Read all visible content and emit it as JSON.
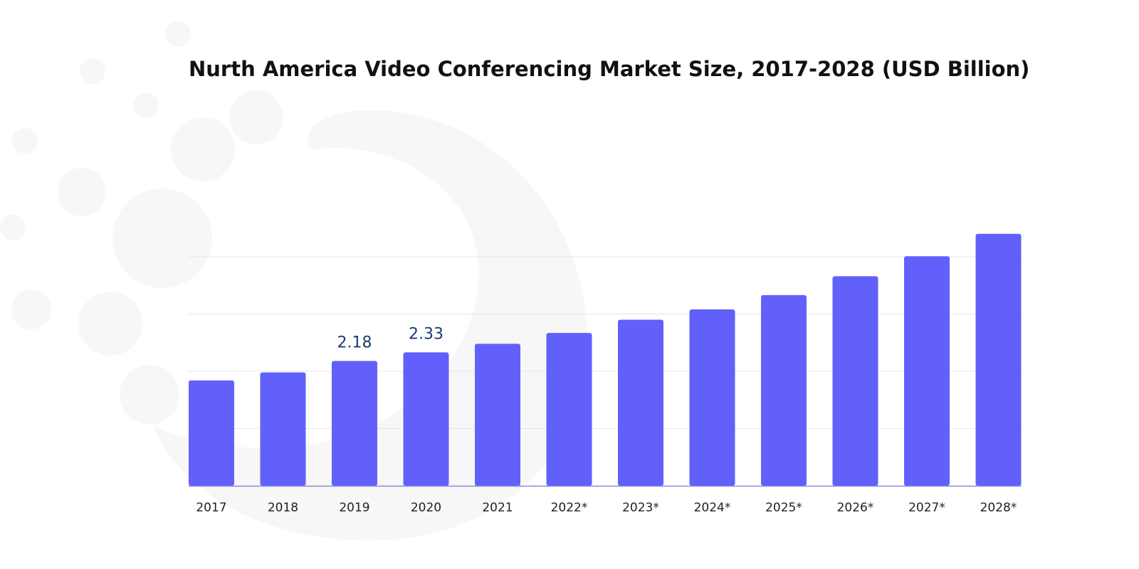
{
  "chart_data": {
    "type": "bar",
    "title": "Nurth America Video Conferencing Market Size, 2017-2028 (USD Billion)",
    "categories": [
      "2017",
      "2018",
      "2019",
      "2020",
      "2021",
      "2022*",
      "2023*",
      "2024*",
      "2025*",
      "2026*",
      "2027*",
      "2028*"
    ],
    "values": [
      1.84,
      1.98,
      2.18,
      2.33,
      2.48,
      2.67,
      2.9,
      3.08,
      3.33,
      3.66,
      4.01,
      4.4
    ],
    "data_labels": [
      {
        "index": 2,
        "text": "2.18"
      },
      {
        "index": 3,
        "text": "2.33"
      }
    ],
    "xlabel": "",
    "ylabel": "",
    "ylim": [
      0,
      4.9
    ],
    "grid": true,
    "bar_color": "#6260fb",
    "label_color": "#1d3b73",
    "grid_color": "#e3e5f5",
    "axis_color": "#8a88d8"
  }
}
